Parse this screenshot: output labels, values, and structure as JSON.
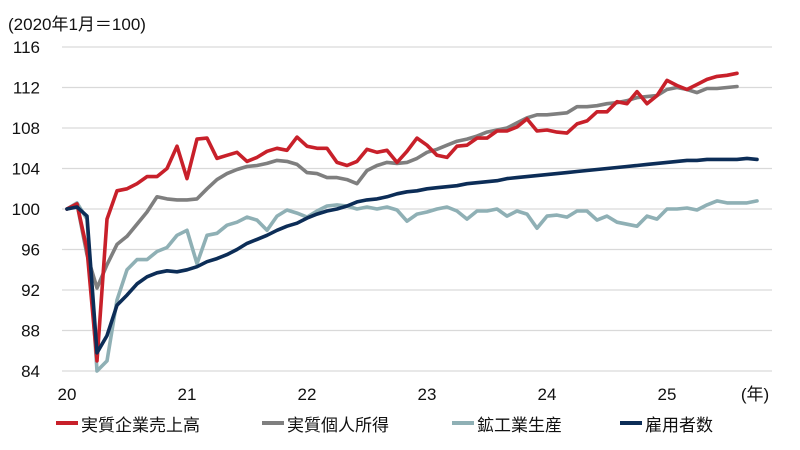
{
  "chart_data": {
    "type": "line",
    "title": "",
    "unit_label": "(2020年1月＝100)",
    "xlabel": "(年)",
    "ylabel": "",
    "ylim": [
      84,
      116
    ],
    "yticks": [
      84,
      88,
      92,
      96,
      100,
      104,
      108,
      112,
      116
    ],
    "xtick_labels": [
      "20",
      "21",
      "22",
      "23",
      "24",
      "25"
    ],
    "x_unit": "(年)",
    "x_start": "2020-01",
    "frequency": "monthly",
    "grid": true,
    "legend_position": "bottom",
    "series": [
      {
        "name": "実質企業売上高",
        "color": "#c8202a",
        "values": [
          100.0,
          100.5,
          96.0,
          85.0,
          99.0,
          101.8,
          102.0,
          102.5,
          103.2,
          103.2,
          104.0,
          106.2,
          103.0,
          106.9,
          107.0,
          105.0,
          105.3,
          105.6,
          104.7,
          105.1,
          105.7,
          106.0,
          105.8,
          107.1,
          106.2,
          106.0,
          106.0,
          104.6,
          104.3,
          104.7,
          105.9,
          105.6,
          105.8,
          104.6,
          105.7,
          107.0,
          106.3,
          105.3,
          105.1,
          106.2,
          106.3,
          107.0,
          107.0,
          107.7,
          107.7,
          108.1,
          108.9,
          107.7,
          107.8,
          107.6,
          107.5,
          108.4,
          108.7,
          109.6,
          109.6,
          110.6,
          110.4,
          111.6,
          110.4,
          111.2,
          112.7,
          112.2,
          111.8,
          112.3,
          112.8,
          113.1,
          113.2,
          113.4
        ]
      },
      {
        "name": "実質個人所得",
        "color": "#7f7f7f",
        "values": [
          100.0,
          100.5,
          95.5,
          92.2,
          94.5,
          96.5,
          97.3,
          98.5,
          99.7,
          101.2,
          101.0,
          100.9,
          100.9,
          101.0,
          102.0,
          102.9,
          103.5,
          103.9,
          104.2,
          104.3,
          104.5,
          104.8,
          104.7,
          104.4,
          103.6,
          103.5,
          103.1,
          103.1,
          102.9,
          102.5,
          103.8,
          104.3,
          104.6,
          104.5,
          104.6,
          105.0,
          105.6,
          105.9,
          106.3,
          106.7,
          106.9,
          107.2,
          107.6,
          107.8,
          108.0,
          108.5,
          109.0,
          109.3,
          109.3,
          109.4,
          109.5,
          110.1,
          110.1,
          110.2,
          110.4,
          110.5,
          110.7,
          111.0,
          111.1,
          111.2,
          111.8,
          112.0,
          111.8,
          111.5,
          111.9,
          111.9,
          112.0,
          112.1
        ]
      },
      {
        "name": "鉱工業生産",
        "color": "#8fb0b5",
        "values": [
          100.0,
          100.6,
          99.0,
          84.0,
          85.0,
          91.0,
          94.0,
          95.0,
          95.0,
          95.8,
          96.2,
          97.4,
          97.9,
          94.6,
          97.4,
          97.6,
          98.4,
          98.7,
          99.2,
          98.9,
          97.9,
          99.3,
          99.9,
          99.6,
          99.2,
          99.8,
          100.3,
          100.4,
          100.3,
          100.0,
          100.2,
          100.0,
          100.2,
          99.9,
          98.8,
          99.5,
          99.7,
          100.0,
          100.2,
          99.8,
          99.0,
          99.8,
          99.8,
          100.0,
          99.3,
          99.8,
          99.5,
          98.1,
          99.3,
          99.4,
          99.2,
          99.8,
          99.8,
          98.9,
          99.3,
          98.7,
          98.5,
          98.3,
          99.3,
          99.0,
          100.0,
          100.0,
          100.1,
          99.9,
          100.4,
          100.8,
          100.6,
          100.6,
          100.6,
          100.8
        ]
      },
      {
        "name": "雇用者数",
        "color": "#0c2d57",
        "values": [
          100.0,
          100.2,
          99.3,
          85.8,
          87.5,
          90.5,
          91.5,
          92.6,
          93.3,
          93.7,
          93.9,
          93.8,
          94.0,
          94.3,
          94.8,
          95.1,
          95.5,
          96.0,
          96.6,
          97.0,
          97.4,
          97.9,
          98.3,
          98.6,
          99.1,
          99.5,
          99.8,
          100.0,
          100.3,
          100.7,
          100.9,
          101.0,
          101.2,
          101.5,
          101.7,
          101.8,
          102.0,
          102.1,
          102.2,
          102.3,
          102.5,
          102.6,
          102.7,
          102.8,
          103.0,
          103.1,
          103.2,
          103.3,
          103.4,
          103.5,
          103.6,
          103.7,
          103.8,
          103.9,
          104.0,
          104.1,
          104.2,
          104.3,
          104.4,
          104.5,
          104.6,
          104.7,
          104.8,
          104.8,
          104.9,
          104.9,
          104.9,
          104.9,
          105.0,
          104.9
        ]
      }
    ]
  },
  "legend": {
    "items": [
      {
        "label": "実質企業売上高",
        "color": "#c8202a"
      },
      {
        "label": "実質個人所得",
        "color": "#7f7f7f"
      },
      {
        "label": "鉱工業生産",
        "color": "#8fb0b5"
      },
      {
        "label": "雇用者数",
        "color": "#0c2d57"
      }
    ]
  }
}
